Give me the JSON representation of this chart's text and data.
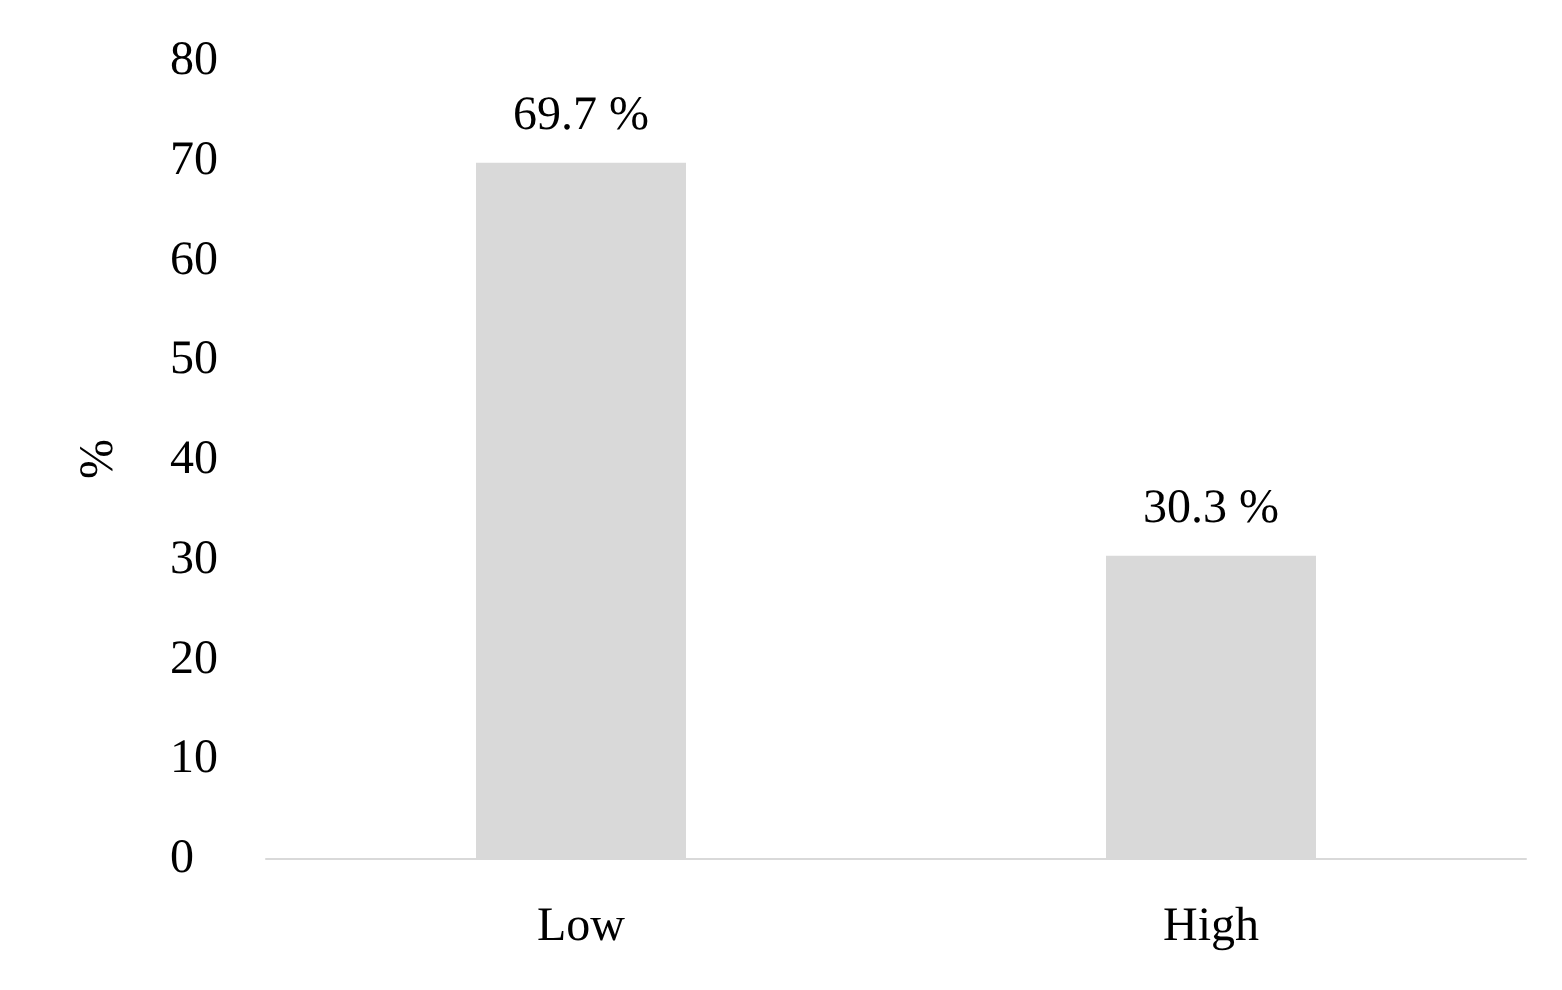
{
  "chart_data": {
    "type": "bar",
    "ylabel": "%",
    "categories": [
      "Low",
      "High"
    ],
    "values": [
      69.7,
      30.3
    ],
    "value_labels": [
      "69.7 %",
      "30.3 %"
    ],
    "color": "#d9d9d9",
    "ylim": [
      0,
      80
    ],
    "yticks": [
      0,
      10,
      20,
      30,
      40,
      50,
      60,
      70,
      80
    ],
    "grid": false
  }
}
